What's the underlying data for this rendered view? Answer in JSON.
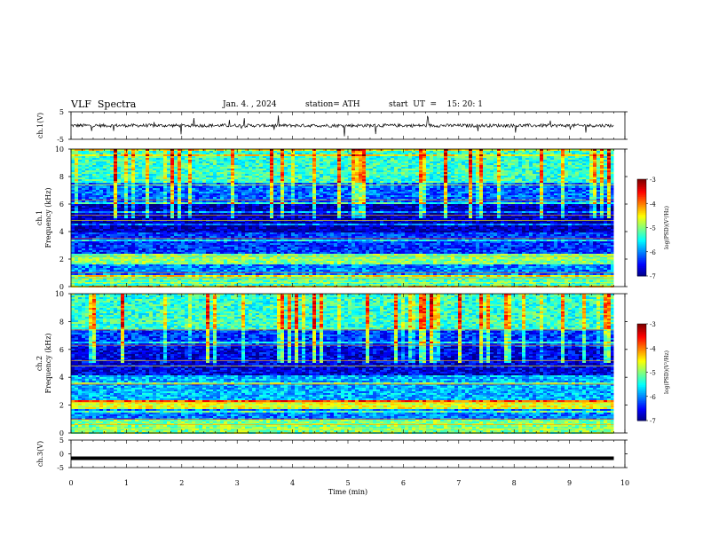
{
  "header": {
    "title": "VLF  Spectra",
    "date": "Jan. 4. , 2024",
    "station": "station= ATH",
    "start": "start  UT  =    15: 20: 1"
  },
  "chart_data": [
    {
      "type": "line",
      "name": "ch1-waveform",
      "ylabel": "ch.1(V)",
      "ylim": [
        -5,
        5
      ],
      "yticks": [
        "5",
        "-5"
      ],
      "xlim": [
        0,
        10
      ],
      "description_values": {
        "baseline_V": 0,
        "noise_amplitude_V": 0.6,
        "spike_amplitude_V": 4
      }
    },
    {
      "type": "heatmap",
      "name": "ch1-spectrogram",
      "ylabel": "ch.1\nFrequency  (kHz)",
      "ylim": [
        0,
        10
      ],
      "yticks": [
        "0",
        "2",
        "4",
        "6",
        "8",
        "10"
      ],
      "xlim": [
        0,
        9.8
      ],
      "colorbar": {
        "label": "log(PSD)(V²/Hz)",
        "ticks": [
          "-3",
          "-4",
          "-5",
          "-6",
          "-7"
        ],
        "range": [
          -7,
          -3
        ]
      },
      "bands_kHz": [
        {
          "from": 0,
          "to": 0.9,
          "level": -5.2
        },
        {
          "from": 0.9,
          "to": 1.6,
          "level": -6.0
        },
        {
          "from": 1.6,
          "to": 2.4,
          "level": -5.0
        },
        {
          "from": 2.4,
          "to": 4.0,
          "level": -6.3
        },
        {
          "from": 4.0,
          "to": 6.0,
          "level": -6.8
        },
        {
          "from": 6.0,
          "to": 7.5,
          "level": -6.1
        },
        {
          "from": 7.5,
          "to": 10,
          "level": -5.3
        }
      ]
    },
    {
      "type": "heatmap",
      "name": "ch2-spectrogram",
      "ylabel": "ch.2\nFrequency  (kHz)",
      "ylim": [
        0,
        10
      ],
      "yticks": [
        "0",
        "2",
        "4",
        "6",
        "8",
        "10"
      ],
      "xlim": [
        0,
        9.8
      ],
      "colorbar": {
        "label": "log(PSD)(V²/Hz)",
        "ticks": [
          "-3",
          "-4",
          "-5",
          "-6",
          "-7"
        ],
        "range": [
          -7,
          -3
        ]
      },
      "bands_kHz": [
        {
          "from": 0,
          "to": 1.0,
          "level": -5.0
        },
        {
          "from": 1.0,
          "to": 1.7,
          "level": -6.0
        },
        {
          "from": 1.7,
          "to": 2.3,
          "level": -4.6
        },
        {
          "from": 2.3,
          "to": 4.2,
          "level": -5.8
        },
        {
          "from": 4.2,
          "to": 6.2,
          "level": -6.6
        },
        {
          "from": 6.2,
          "to": 7.5,
          "level": -6.3
        },
        {
          "from": 7.5,
          "to": 10,
          "level": -5.3
        }
      ]
    },
    {
      "type": "line",
      "name": "ch3-waveform",
      "ylabel": "ch.3(V)",
      "ylim": [
        -5,
        5
      ],
      "yticks": [
        "5",
        "0",
        "-5"
      ],
      "xlim": [
        0,
        9.8
      ],
      "x": [
        0,
        9.8
      ],
      "y": [
        -1.6,
        -1.6
      ]
    }
  ],
  "x_axis": {
    "label": "Time  (min)",
    "ticks": [
      "0",
      "1",
      "2",
      "3",
      "4",
      "5",
      "6",
      "7",
      "8",
      "9",
      "10"
    ],
    "range": [
      0,
      10
    ]
  }
}
